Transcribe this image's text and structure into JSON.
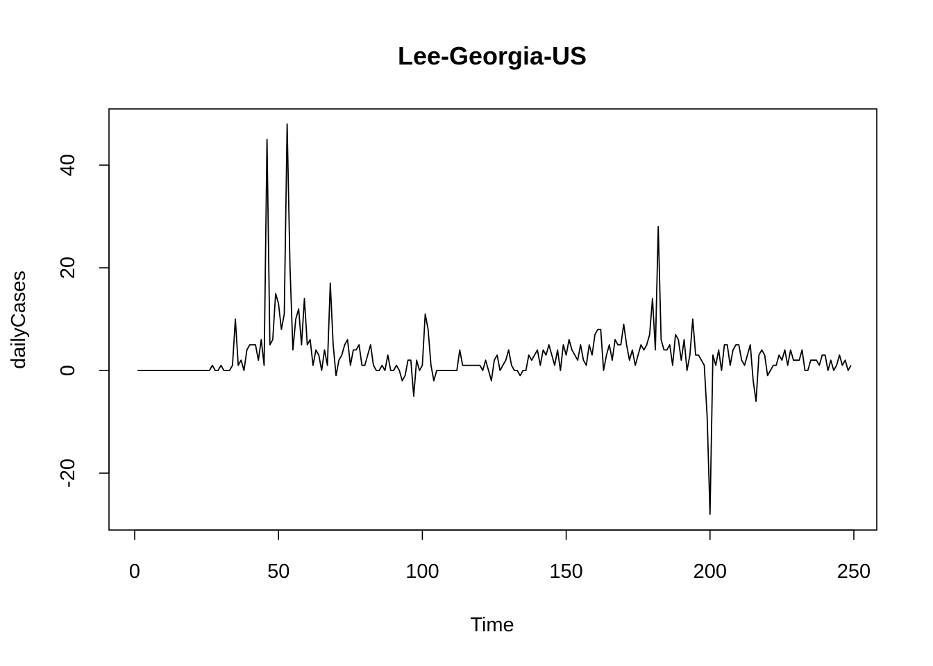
{
  "chart_data": {
    "type": "line",
    "title": "Lee-Georgia-US",
    "xlabel": "Time",
    "ylabel": "dailyCases",
    "xlim": [
      0,
      250
    ],
    "ylim": [
      -30,
      50
    ],
    "x_ticks": [
      0,
      50,
      100,
      150,
      200,
      250
    ],
    "y_ticks": [
      -20,
      0,
      20,
      40
    ],
    "x_tick_labels": [
      "0",
      "50",
      "100",
      "150",
      "200",
      "250"
    ],
    "y_tick_labels": [
      "-20",
      "0",
      "20",
      "40"
    ],
    "grid": false,
    "legend": "none",
    "x_start": 1,
    "values": [
      0,
      0,
      0,
      0,
      0,
      0,
      0,
      0,
      0,
      0,
      0,
      0,
      0,
      0,
      0,
      0,
      0,
      0,
      0,
      0,
      0,
      0,
      0,
      0,
      0,
      0,
      1,
      0,
      0,
      1,
      0,
      0,
      0,
      1,
      10,
      1,
      2,
      0,
      4,
      5,
      5,
      5,
      2,
      6,
      1,
      45,
      5,
      6,
      15,
      13,
      8,
      11,
      48,
      20,
      4,
      10,
      12,
      5,
      14,
      5,
      6,
      1,
      4,
      3,
      0,
      4,
      1,
      17,
      5,
      -1,
      2,
      3,
      5,
      6,
      1,
      4,
      4,
      5,
      1,
      1,
      3,
      5,
      1,
      0,
      0,
      1,
      0,
      3,
      0,
      0,
      1,
      0,
      -2,
      -1,
      2,
      2,
      -5,
      2,
      0,
      1,
      11,
      8,
      1,
      -2,
      0,
      0,
      0,
      0,
      0,
      0,
      0,
      0,
      4,
      1,
      1,
      1,
      1,
      1,
      1,
      1,
      0,
      2,
      0,
      -2,
      2,
      3,
      0,
      1,
      2,
      4,
      1,
      0,
      0,
      -1,
      0,
      0,
      3,
      2,
      3,
      4,
      1,
      4,
      3,
      5,
      3,
      1,
      4,
      0,
      5,
      3,
      6,
      4,
      3,
      2,
      5,
      2,
      1,
      5,
      3,
      7,
      8,
      8,
      0,
      3,
      5,
      2,
      6,
      5,
      5,
      9,
      5,
      2,
      4,
      1,
      3,
      5,
      4,
      5,
      7,
      14,
      4,
      28,
      6,
      4,
      4,
      5,
      1,
      7,
      6,
      2,
      6,
      0,
      3,
      10,
      3,
      3,
      2,
      1,
      -9,
      -28,
      3,
      1,
      4,
      0,
      5,
      5,
      1,
      4,
      5,
      5,
      2,
      1,
      3,
      5,
      -2,
      -6,
      3,
      4,
      3,
      -1,
      0,
      1,
      1,
      3,
      2,
      4,
      1,
      4,
      2,
      2,
      2,
      4,
      0,
      0,
      2,
      2,
      2,
      1,
      3,
      3,
      0,
      2,
      0,
      1,
      3,
      1,
      2,
      0,
      1
    ]
  }
}
